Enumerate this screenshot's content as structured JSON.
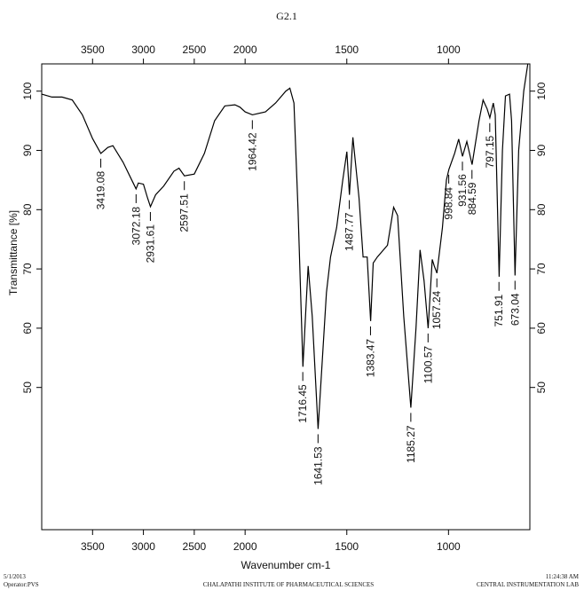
{
  "chart_data": {
    "type": "line",
    "title": "G2.1",
    "x_label": "Wavenumber cm-1",
    "y_label": "Transmittance [%]",
    "color": "#000000",
    "xlim": [
      4000,
      600
    ],
    "x_scale_break": 2000,
    "x_break_factor": 2,
    "xticks": [
      3500,
      3000,
      2500,
      2000,
      1500,
      1000
    ],
    "ylim": [
      26,
      104.6
    ],
    "yticks": [
      50,
      60,
      70,
      80,
      90,
      100
    ],
    "x": [
      4000,
      3900,
      3800,
      3700,
      3600,
      3500,
      3419,
      3350,
      3300,
      3200,
      3100,
      3072,
      3050,
      3000,
      2960,
      2931,
      2880,
      2800,
      2700,
      2650,
      2597,
      2500,
      2400,
      2300,
      2200,
      2100,
      2050,
      2000,
      1964,
      1900,
      1850,
      1800,
      1780,
      1760,
      1740,
      1716,
      1700,
      1690,
      1670,
      1641,
      1620,
      1600,
      1580,
      1550,
      1520,
      1500,
      1487,
      1470,
      1440,
      1420,
      1400,
      1383,
      1370,
      1350,
      1300,
      1270,
      1250,
      1220,
      1185,
      1160,
      1140,
      1120,
      1100,
      1080,
      1070,
      1057,
      1030,
      1010,
      998,
      970,
      950,
      931,
      910,
      884,
      850,
      830,
      810,
      797,
      780,
      770,
      751,
      735,
      720,
      700,
      690,
      673,
      655,
      630,
      610
    ],
    "values": [
      99.5,
      99,
      99,
      98.5,
      96,
      92,
      89.5,
      90.5,
      90.8,
      88,
      84.5,
      83.5,
      84.5,
      84.3,
      82,
      80.5,
      82.5,
      84,
      86.5,
      87,
      85.7,
      86,
      89.5,
      95,
      97.5,
      97.7,
      97.3,
      96.5,
      96,
      96.5,
      98,
      100,
      100.5,
      98,
      80,
      53.5,
      64,
      70.5,
      62,
      43,
      55,
      66,
      72,
      77,
      85,
      89.8,
      82.5,
      92.2,
      82,
      72,
      72,
      61.2,
      71,
      72,
      74,
      80.4,
      79,
      62,
      46.6,
      60,
      73.2,
      68,
      60,
      71.6,
      70.5,
      69.3,
      77,
      85,
      86.8,
      89.5,
      91.9,
      89,
      91.5,
      87.6,
      95,
      98.5,
      97,
      95.5,
      98,
      96,
      68.7,
      90,
      99.2,
      99.5,
      95,
      68.9,
      90,
      100,
      104.6
    ],
    "peaks": [
      {
        "x": 3419.08,
        "y": 89.5
      },
      {
        "x": 3072.18,
        "y": 83.5
      },
      {
        "x": 2931.61,
        "y": 80.5
      },
      {
        "x": 2597.51,
        "y": 85.7
      },
      {
        "x": 1964.42,
        "y": 96
      },
      {
        "x": 1716.45,
        "y": 53.5
      },
      {
        "x": 1641.53,
        "y": 43
      },
      {
        "x": 1487.77,
        "y": 82.5
      },
      {
        "x": 1383.47,
        "y": 61.2
      },
      {
        "x": 1185.27,
        "y": 46.6
      },
      {
        "x": 1100.57,
        "y": 60
      },
      {
        "x": 1057.24,
        "y": 69.3
      },
      {
        "x": 998.84,
        "y": 86.8
      },
      {
        "x": 931.56,
        "y": 89
      },
      {
        "x": 884.59,
        "y": 87.6
      },
      {
        "x": 797.15,
        "y": 95.5
      },
      {
        "x": 751.91,
        "y": 68.7
      },
      {
        "x": 673.04,
        "y": 68.9
      }
    ]
  },
  "footer": {
    "date": "5/1/2013",
    "operator": "Operator:PVS",
    "institute": "CHALAPATHI INSTITUTE OF PHARMACEUTICAL SCIENCES",
    "time": "11:24:38 AM",
    "lab": "CENTRAL INSTRUMENTATION LAB"
  }
}
